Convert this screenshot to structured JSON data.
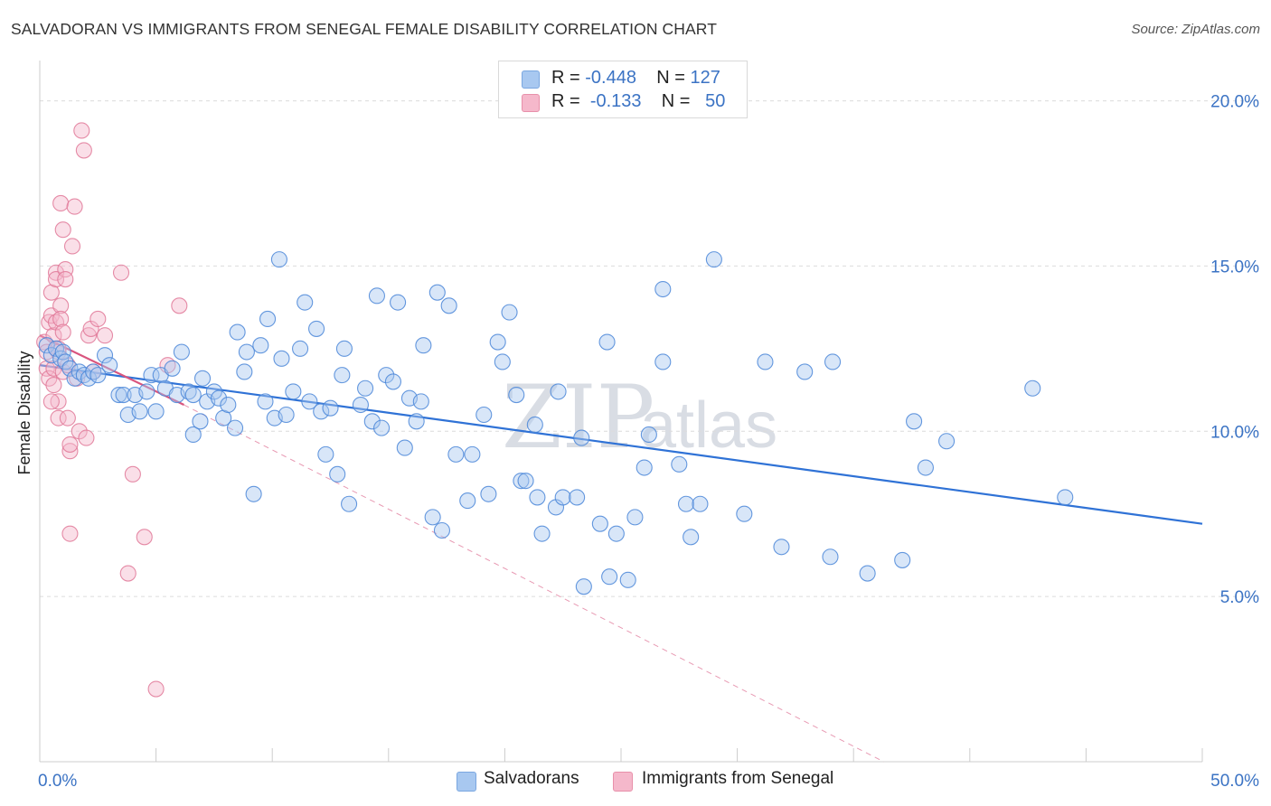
{
  "title": "SALVADORAN VS IMMIGRANTS FROM SENEGAL FEMALE DISABILITY CORRELATION CHART",
  "source": "Source: ZipAtlas.com",
  "watermark": {
    "zip": "ZIP",
    "atlas": "atlas"
  },
  "legend": {
    "rows": [
      {
        "r_label": "R = ",
        "r_value": "-0.448",
        "n_label": "N = ",
        "n_value": "127",
        "color": "#a8c8f0"
      },
      {
        "r_label": "R = ",
        "r_value": "-0.133",
        "n_label": "N = ",
        "n_value": "50",
        "color": "#f5b8cb"
      }
    ]
  },
  "bottom_legend": [
    {
      "label": "Salvadorans",
      "color": "#a8c8f0"
    },
    {
      "label": "Immigrants from Senegal",
      "color": "#f5b8cb"
    }
  ],
  "chart_data": {
    "type": "scatter",
    "title": "SALVADORAN VS IMMIGRANTS FROM SENEGAL FEMALE DISABILITY CORRELATION CHART",
    "xlabel": "",
    "ylabel": "Female Disability",
    "xlim": [
      0,
      50
    ],
    "ylim": [
      0,
      21
    ],
    "x_tick_labels": [
      "0.0%",
      "50.0%"
    ],
    "y_ticks": [
      5,
      10,
      15,
      20
    ],
    "y_tick_labels": [
      "5.0%",
      "10.0%",
      "15.0%",
      "20.0%"
    ],
    "grid": true,
    "legend_position": "top-center",
    "series": [
      {
        "name": "Salvadorans",
        "color": "#4a86d8",
        "fill": "#a8c8f0",
        "trend": {
          "x": [
            0,
            50
          ],
          "y": [
            12.0,
            7.2
          ]
        },
        "points": [
          [
            0.3,
            12.6
          ],
          [
            0.5,
            12.3
          ],
          [
            0.7,
            12.5
          ],
          [
            0.9,
            12.2
          ],
          [
            1.0,
            12.4
          ],
          [
            1.1,
            12.1
          ],
          [
            1.3,
            11.9
          ],
          [
            1.5,
            11.6
          ],
          [
            1.7,
            11.8
          ],
          [
            1.9,
            11.7
          ],
          [
            2.1,
            11.6
          ],
          [
            2.3,
            11.8
          ],
          [
            2.5,
            11.7
          ],
          [
            2.8,
            12.3
          ],
          [
            3.0,
            12.0
          ],
          [
            3.4,
            11.1
          ],
          [
            3.6,
            11.1
          ],
          [
            3.8,
            10.5
          ],
          [
            4.1,
            11.1
          ],
          [
            4.3,
            10.6
          ],
          [
            4.6,
            11.2
          ],
          [
            4.8,
            11.7
          ],
          [
            5.0,
            10.6
          ],
          [
            5.2,
            11.7
          ],
          [
            5.4,
            11.3
          ],
          [
            5.7,
            11.9
          ],
          [
            5.9,
            11.1
          ],
          [
            6.1,
            12.4
          ],
          [
            6.4,
            11.2
          ],
          [
            6.6,
            11.1
          ],
          [
            6.6,
            9.9
          ],
          [
            6.9,
            10.3
          ],
          [
            7.0,
            11.6
          ],
          [
            7.2,
            10.9
          ],
          [
            7.5,
            11.2
          ],
          [
            7.7,
            11.0
          ],
          [
            7.9,
            10.4
          ],
          [
            8.1,
            10.8
          ],
          [
            8.4,
            10.1
          ],
          [
            8.5,
            13.0
          ],
          [
            8.8,
            11.8
          ],
          [
            8.9,
            12.4
          ],
          [
            9.2,
            8.1
          ],
          [
            9.5,
            12.6
          ],
          [
            9.7,
            10.9
          ],
          [
            9.8,
            13.4
          ],
          [
            10.1,
            10.4
          ],
          [
            10.3,
            15.2
          ],
          [
            10.4,
            12.2
          ],
          [
            10.6,
            10.5
          ],
          [
            10.9,
            11.2
          ],
          [
            11.2,
            12.5
          ],
          [
            11.4,
            13.9
          ],
          [
            11.6,
            10.9
          ],
          [
            11.9,
            13.1
          ],
          [
            12.1,
            10.6
          ],
          [
            12.3,
            9.3
          ],
          [
            12.5,
            10.7
          ],
          [
            12.8,
            8.7
          ],
          [
            13.0,
            11.7
          ],
          [
            13.1,
            12.5
          ],
          [
            13.3,
            7.8
          ],
          [
            13.8,
            10.8
          ],
          [
            14.0,
            11.3
          ],
          [
            14.3,
            10.3
          ],
          [
            14.5,
            14.1
          ],
          [
            14.7,
            10.1
          ],
          [
            14.9,
            11.7
          ],
          [
            15.2,
            11.5
          ],
          [
            15.4,
            13.9
          ],
          [
            15.7,
            9.5
          ],
          [
            15.9,
            11.0
          ],
          [
            16.2,
            10.3
          ],
          [
            16.4,
            10.9
          ],
          [
            16.5,
            12.6
          ],
          [
            16.9,
            7.4
          ],
          [
            17.1,
            14.2
          ],
          [
            17.3,
            7.0
          ],
          [
            17.6,
            13.8
          ],
          [
            17.9,
            9.3
          ],
          [
            18.4,
            7.9
          ],
          [
            18.6,
            9.3
          ],
          [
            19.1,
            10.5
          ],
          [
            19.3,
            8.1
          ],
          [
            19.7,
            12.7
          ],
          [
            19.9,
            12.1
          ],
          [
            20.2,
            13.6
          ],
          [
            20.5,
            11.1
          ],
          [
            20.7,
            8.5
          ],
          [
            20.9,
            8.5
          ],
          [
            21.3,
            10.2
          ],
          [
            21.4,
            8.0
          ],
          [
            21.6,
            6.9
          ],
          [
            22.2,
            7.7
          ],
          [
            22.3,
            11.2
          ],
          [
            22.5,
            8.0
          ],
          [
            23.1,
            8.0
          ],
          [
            23.3,
            9.8
          ],
          [
            23.4,
            5.3
          ],
          [
            24.1,
            7.2
          ],
          [
            24.4,
            12.7
          ],
          [
            24.5,
            5.6
          ],
          [
            24.8,
            6.9
          ],
          [
            25.3,
            5.5
          ],
          [
            25.6,
            7.4
          ],
          [
            26.0,
            8.9
          ],
          [
            26.2,
            9.9
          ],
          [
            26.8,
            14.3
          ],
          [
            26.8,
            12.1
          ],
          [
            27.5,
            9.0
          ],
          [
            27.8,
            7.8
          ],
          [
            28.0,
            6.8
          ],
          [
            28.4,
            7.8
          ],
          [
            29.0,
            15.2
          ],
          [
            30.3,
            7.5
          ],
          [
            31.2,
            12.1
          ],
          [
            31.9,
            6.5
          ],
          [
            32.9,
            11.8
          ],
          [
            34.0,
            6.2
          ],
          [
            34.1,
            12.1
          ],
          [
            35.6,
            5.7
          ],
          [
            37.1,
            6.1
          ],
          [
            37.6,
            10.3
          ],
          [
            38.1,
            8.9
          ],
          [
            39.0,
            9.7
          ],
          [
            42.7,
            11.3
          ],
          [
            44.1,
            8.0
          ]
        ]
      },
      {
        "name": "Immigrants from Senegal",
        "color": "#e07898",
        "fill": "#f5b8cb",
        "trend": {
          "x": [
            0,
            6.2
          ],
          "y": [
            12.9,
            10.8
          ]
        },
        "trend_extended": {
          "x": [
            6.2,
            36.3
          ],
          "y": [
            10.8,
            0.0
          ]
        },
        "points": [
          [
            0.2,
            12.7
          ],
          [
            0.3,
            11.9
          ],
          [
            0.3,
            12.4
          ],
          [
            0.4,
            11.6
          ],
          [
            0.4,
            13.3
          ],
          [
            0.5,
            14.2
          ],
          [
            0.5,
            13.5
          ],
          [
            0.6,
            12.9
          ],
          [
            0.6,
            11.9
          ],
          [
            0.6,
            11.4
          ],
          [
            0.7,
            14.8
          ],
          [
            0.7,
            14.6
          ],
          [
            0.7,
            13.3
          ],
          [
            0.8,
            10.9
          ],
          [
            0.8,
            10.4
          ],
          [
            0.8,
            12.5
          ],
          [
            0.9,
            16.9
          ],
          [
            0.9,
            13.8
          ],
          [
            0.9,
            13.4
          ],
          [
            1.0,
            16.1
          ],
          [
            1.0,
            11.8
          ],
          [
            1.1,
            14.9
          ],
          [
            1.1,
            14.6
          ],
          [
            1.2,
            12.0
          ],
          [
            1.2,
            10.4
          ],
          [
            1.3,
            9.4
          ],
          [
            1.3,
            9.6
          ],
          [
            1.4,
            15.6
          ],
          [
            1.5,
            16.8
          ],
          [
            1.6,
            11.6
          ],
          [
            1.7,
            10.0
          ],
          [
            1.8,
            19.1
          ],
          [
            1.9,
            18.5
          ],
          [
            2.0,
            9.8
          ],
          [
            2.1,
            12.9
          ],
          [
            2.2,
            13.1
          ],
          [
            2.3,
            11.8
          ],
          [
            2.5,
            13.4
          ],
          [
            2.8,
            12.9
          ],
          [
            3.5,
            14.8
          ],
          [
            3.8,
            5.7
          ],
          [
            4.0,
            8.7
          ],
          [
            4.5,
            6.8
          ],
          [
            5.0,
            2.2
          ],
          [
            5.5,
            12.0
          ],
          [
            6.0,
            13.8
          ],
          [
            1.0,
            13.0
          ],
          [
            0.5,
            10.9
          ],
          [
            1.3,
            6.9
          ],
          [
            0.8,
            12.4
          ]
        ]
      }
    ]
  }
}
